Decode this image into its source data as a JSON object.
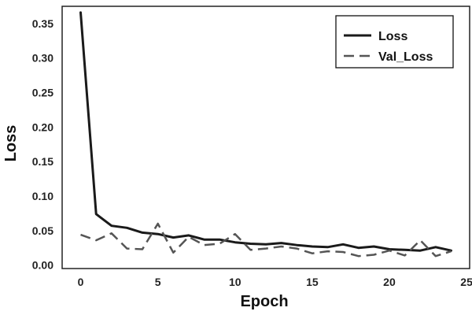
{
  "chart_data": {
    "type": "line",
    "xlabel": "Epoch",
    "ylabel": "Loss",
    "xlim": [
      -1.2,
      25.2
    ],
    "ylim": [
      -0.005,
      0.375
    ],
    "xticks": [
      0,
      5,
      10,
      15,
      20,
      25
    ],
    "yticks": [
      0.0,
      0.05,
      0.1,
      0.15,
      0.2,
      0.25,
      0.3,
      0.35
    ],
    "x": [
      0,
      1,
      2,
      3,
      4,
      5,
      6,
      7,
      8,
      9,
      10,
      11,
      12,
      13,
      14,
      15,
      16,
      17,
      18,
      19,
      20,
      21,
      22,
      23,
      24
    ],
    "grid": false,
    "legend_position": "top-right",
    "series": [
      {
        "name": "Loss",
        "style": "solid",
        "color": "#1a1a1a",
        "values": [
          0.366,
          0.074,
          0.057,
          0.054,
          0.047,
          0.045,
          0.04,
          0.043,
          0.037,
          0.037,
          0.033,
          0.031,
          0.03,
          0.032,
          0.029,
          0.027,
          0.026,
          0.03,
          0.025,
          0.027,
          0.023,
          0.022,
          0.021,
          0.026,
          0.021
        ]
      },
      {
        "name": "Val_Loss",
        "style": "dashed",
        "color": "#555555",
        "values": [
          0.044,
          0.036,
          0.046,
          0.024,
          0.023,
          0.06,
          0.018,
          0.041,
          0.029,
          0.031,
          0.045,
          0.022,
          0.024,
          0.027,
          0.024,
          0.017,
          0.02,
          0.019,
          0.013,
          0.015,
          0.021,
          0.014,
          0.036,
          0.013,
          0.02
        ]
      }
    ]
  }
}
